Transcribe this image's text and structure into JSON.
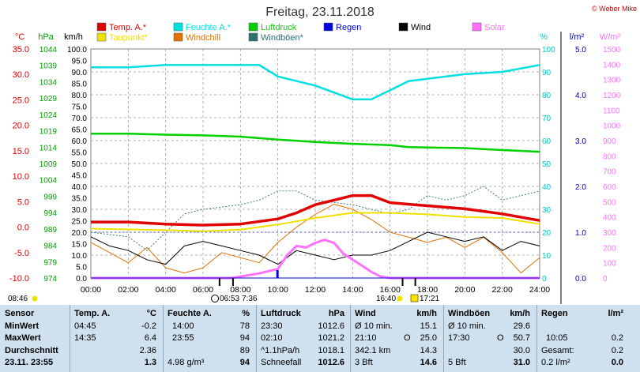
{
  "title": "Freitag, 23.11.2018",
  "credit": "© Weber Mike",
  "legend": [
    {
      "label": "Temp. A.*",
      "color": "#e00000"
    },
    {
      "label": "Feuchte A.*",
      "color": "#00e0e0"
    },
    {
      "label": "Luftdruck",
      "color": "#00d000"
    },
    {
      "label": "Regen",
      "color": "#0000e0"
    },
    {
      "label": "Wind",
      "color": "#000000"
    },
    {
      "label": "Solar",
      "color": "#ff70ff"
    },
    {
      "label": "Taupunkt*",
      "color": "#f0e000"
    },
    {
      "label": "Windchill",
      "color": "#e07000"
    },
    {
      "label": "Windböen*",
      "color": "#2f6f6f"
    }
  ],
  "axes": {
    "temp_unit": "°C",
    "press_unit": "hPa",
    "wind_unit": "km/h",
    "hum_unit": "%",
    "rain_unit": "l/m²",
    "solar_unit": "W/m²",
    "temp_ticks": [
      "35.0",
      "30.0",
      "25.0",
      "20.0",
      "15.0",
      "10.0",
      "5.0",
      "0.0",
      "-5.0",
      "-10.0"
    ],
    "press_ticks": [
      "1044",
      "1039",
      "1034",
      "1029",
      "1024",
      "1019",
      "1014",
      "1009",
      "1004",
      "999",
      "994",
      "989",
      "984",
      "979",
      "974"
    ],
    "wind_ticks": [
      "100.0",
      "95.0",
      "90.0",
      "85.0",
      "80.0",
      "75.0",
      "70.0",
      "65.0",
      "60.0",
      "55.0",
      "50.0",
      "45.0",
      "40.0",
      "35.0",
      "30.0",
      "25.0",
      "20.0",
      "15.0",
      "10.0",
      "5.0",
      "0.0"
    ],
    "hum_ticks": [
      "100",
      "90",
      "80",
      "70",
      "60",
      "50",
      "40",
      "30",
      "20",
      "10",
      "0"
    ],
    "rain_ticks": [
      "5.0",
      "4.0",
      "3.0",
      "2.0",
      "1.0",
      "0.0"
    ],
    "solar_ticks": [
      "1500",
      "1400",
      "1300",
      "1200",
      "1100",
      "1000",
      "900",
      "800",
      "700",
      "600",
      "500",
      "400",
      "300",
      "200",
      "100",
      "0"
    ],
    "time_ticks": [
      "00:00",
      "02:00",
      "04:00",
      "06:00",
      "08:00",
      "10:00",
      "12:00",
      "14:00",
      "16:00",
      "18:00",
      "20:00",
      "22:00",
      "24:00"
    ]
  },
  "sun": {
    "sunrise": "08:46",
    "moonset": "06:53",
    "sun_mark": "7:36",
    "sunset": "16:40",
    "moonrise": "17:21"
  },
  "chart_data": {
    "type": "line",
    "x_unit": "hour",
    "axes": {
      "wind_kmh": [
        0,
        100
      ],
      "temp_c": [
        -10,
        35
      ],
      "pressure_hpa": [
        974,
        1044
      ],
      "humidity_pct": [
        0,
        100
      ],
      "rain_lm2": [
        0,
        5
      ],
      "solar_wm2": [
        0,
        1500
      ]
    },
    "series": [
      {
        "name": "Temp. A.*",
        "axis": "temp_c",
        "points": [
          [
            0,
            1.0
          ],
          [
            2,
            1.0
          ],
          [
            4,
            0.6
          ],
          [
            6,
            0.4
          ],
          [
            8,
            0.6
          ],
          [
            10,
            1.6
          ],
          [
            11,
            2.8
          ],
          [
            12,
            4.4
          ],
          [
            13,
            5.3
          ],
          [
            14,
            6.2
          ],
          [
            15,
            6.2
          ],
          [
            16,
            4.8
          ],
          [
            17,
            4.5
          ],
          [
            18,
            4.2
          ],
          [
            20,
            3.6
          ],
          [
            22,
            2.6
          ],
          [
            24,
            1.3
          ]
        ]
      },
      {
        "name": "Feuchte A.*",
        "axis": "humidity_pct",
        "points": [
          [
            0,
            92
          ],
          [
            2,
            92
          ],
          [
            4,
            93
          ],
          [
            6,
            93
          ],
          [
            8,
            93
          ],
          [
            9,
            93
          ],
          [
            10,
            88
          ],
          [
            12,
            84
          ],
          [
            14,
            78
          ],
          [
            15,
            78
          ],
          [
            16,
            82
          ],
          [
            17,
            86
          ],
          [
            18,
            87
          ],
          [
            20,
            89
          ],
          [
            22,
            90
          ],
          [
            24,
            93
          ]
        ]
      },
      {
        "name": "Luftdruck",
        "axis": "pressure_hpa",
        "points": [
          [
            0,
            1018.1
          ],
          [
            2,
            1018.1
          ],
          [
            4,
            1017.8
          ],
          [
            6,
            1017.6
          ],
          [
            8,
            1017.2
          ],
          [
            10,
            1016.3
          ],
          [
            12,
            1015.6
          ],
          [
            14,
            1015.0
          ],
          [
            16,
            1014.6
          ],
          [
            17,
            1014.0
          ],
          [
            18,
            1013.9
          ],
          [
            20,
            1013.7
          ],
          [
            22,
            1013.1
          ],
          [
            24,
            1012.6
          ]
        ]
      },
      {
        "name": "Taupunkt*",
        "axis": "temp_c",
        "points": [
          [
            0,
            -0.3
          ],
          [
            4,
            -0.6
          ],
          [
            6,
            -0.8
          ],
          [
            8,
            -0.5
          ],
          [
            10,
            0.5
          ],
          [
            12,
            1.8
          ],
          [
            14,
            2.8
          ],
          [
            16,
            2.8
          ],
          [
            18,
            2.5
          ],
          [
            20,
            2.0
          ],
          [
            22,
            1.8
          ],
          [
            24,
            0.6
          ]
        ]
      },
      {
        "name": "Wind",
        "axis": "wind_kmh",
        "points": [
          [
            0,
            18
          ],
          [
            1,
            14
          ],
          [
            2,
            12
          ],
          [
            3,
            8
          ],
          [
            4,
            6
          ],
          [
            5,
            14
          ],
          [
            6,
            16
          ],
          [
            7,
            14
          ],
          [
            8,
            12
          ],
          [
            9,
            10
          ],
          [
            10,
            6
          ],
          [
            11,
            12
          ],
          [
            12,
            10
          ],
          [
            13,
            8
          ],
          [
            14,
            10
          ],
          [
            15,
            10
          ],
          [
            16,
            12
          ],
          [
            17,
            16
          ],
          [
            18,
            20
          ],
          [
            19,
            18
          ],
          [
            20,
            16
          ],
          [
            21,
            18
          ],
          [
            22,
            12
          ],
          [
            23,
            16
          ],
          [
            24,
            14
          ]
        ]
      },
      {
        "name": "Windchill",
        "axis": "temp_c",
        "points": [
          [
            0,
            -3.0
          ],
          [
            1,
            -5.0
          ],
          [
            2,
            -7.0
          ],
          [
            3,
            -4.0
          ],
          [
            4,
            -8.0
          ],
          [
            5,
            -9.0
          ],
          [
            6,
            -8.0
          ],
          [
            7,
            -5.0
          ],
          [
            8,
            -6.0
          ],
          [
            9,
            -7.0
          ],
          [
            10,
            -3.0
          ],
          [
            11,
            0.0
          ],
          [
            12,
            2.5
          ],
          [
            13,
            4.5
          ],
          [
            14,
            3.5
          ],
          [
            15,
            1.5
          ],
          [
            16,
            -1.0
          ],
          [
            17,
            -2.0
          ],
          [
            18,
            -3.0
          ],
          [
            19,
            -2.0
          ],
          [
            20,
            -4.0
          ],
          [
            21,
            -2.0
          ],
          [
            22,
            -5.0
          ],
          [
            23,
            -9.0
          ],
          [
            24,
            -6.0
          ]
        ]
      },
      {
        "name": "Windböen*",
        "axis": "wind_kmh",
        "points": [
          [
            0,
            20
          ],
          [
            2,
            18
          ],
          [
            3,
            12
          ],
          [
            4,
            20
          ],
          [
            5,
            28
          ],
          [
            6,
            30
          ],
          [
            8,
            32
          ],
          [
            9,
            34
          ],
          [
            10,
            38
          ],
          [
            11,
            38
          ],
          [
            12,
            34
          ],
          [
            14,
            32
          ],
          [
            15,
            30
          ],
          [
            16,
            28
          ],
          [
            17,
            30
          ],
          [
            18,
            36
          ],
          [
            19,
            34
          ],
          [
            20,
            36
          ],
          [
            21,
            40
          ],
          [
            22,
            34
          ],
          [
            23,
            36
          ],
          [
            24,
            38
          ]
        ]
      },
      {
        "name": "Solar",
        "axis": "solar_wm2",
        "points": [
          [
            0,
            0
          ],
          [
            7.5,
            0
          ],
          [
            8,
            10
          ],
          [
            9,
            30
          ],
          [
            10,
            60
          ],
          [
            10.5,
            150
          ],
          [
            11,
            210
          ],
          [
            11.5,
            200
          ],
          [
            12,
            230
          ],
          [
            12.5,
            250
          ],
          [
            13,
            230
          ],
          [
            13.5,
            160
          ],
          [
            14,
            120
          ],
          [
            14.5,
            80
          ],
          [
            15,
            40
          ],
          [
            15.5,
            10
          ],
          [
            16,
            0
          ],
          [
            24,
            0
          ]
        ]
      },
      {
        "name": "Regen",
        "axis": "rain_lm2",
        "points": [
          [
            0,
            0
          ],
          [
            24,
            0
          ]
        ]
      }
    ]
  },
  "stats": {
    "sensor_header": "Sensor",
    "minwert": "MinWert",
    "maxwert": "MaxWert",
    "durchschnitt": "Durchschnitt",
    "now_label": "23.11. 23:55",
    "temp": {
      "title": "Temp. A.",
      "unit": "°C",
      "min_time": "04:45",
      "min_val": "-0.2",
      "max_time": "14:35",
      "max_val": "6.4",
      "avg": "2.36",
      "now": "1.3"
    },
    "hum": {
      "title": "Feuchte A.",
      "unit": "%",
      "min_time": "14:00",
      "min_val": "78",
      "max_time": "23:55",
      "max_val": "94",
      "avg": "89",
      "now_extra": "4.98 g/m³",
      "now": "94"
    },
    "press": {
      "title": "Luftdruck",
      "unit": "hPa",
      "min_time": "23:30",
      "min_val": "1012.6",
      "max_time": "02:10",
      "max_val": "1021.2",
      "trend": "^1.1hPa/h",
      "avg": "1018.1",
      "weather": "Schneefall",
      "now": "1012.6"
    },
    "wind": {
      "title": "Wind",
      "unit": "km/h",
      "min_label": "Ø 10 min.",
      "min_val": "15.1",
      "max_time": "21:10",
      "max_dir": "O",
      "max_val": "25.0",
      "dist": "342.1 km",
      "avg": "14.3",
      "bft": "3 Bft",
      "now": "14.6"
    },
    "gust": {
      "title": "Windböen",
      "unit": "km/h",
      "min_label": "Ø 10 min.",
      "min_val": "29.6",
      "max_time": "17:30",
      "max_dir": "O",
      "max_val": "50.7",
      "avg": "30.0",
      "bft": "5 Bft",
      "now": "31.0"
    },
    "rain": {
      "title": "Regen",
      "unit": "l/m²",
      "max_time": "10:05",
      "max_val": "0.2",
      "total_label": "Gesamt:",
      "total_val": "0.2",
      "now_extra": "0.2 l/m²",
      "now": "0.0"
    }
  }
}
